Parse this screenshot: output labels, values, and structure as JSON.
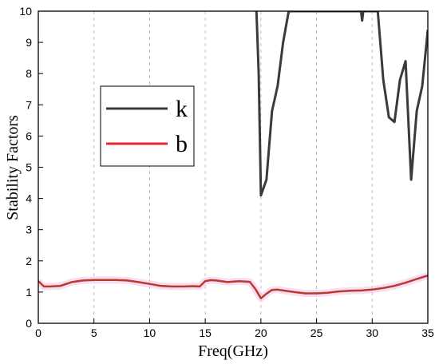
{
  "chart_data": {
    "type": "line",
    "xlabel": "Freq(GHz)",
    "ylabel": "Stability Factors",
    "xlim": [
      0,
      35
    ],
    "ylim": [
      0,
      10
    ],
    "x_ticks": [
      0,
      5,
      10,
      15,
      20,
      25,
      30,
      35
    ],
    "y_ticks": [
      0,
      1,
      2,
      3,
      4,
      5,
      6,
      7,
      8,
      9,
      10
    ],
    "grid": "vertical dashed",
    "legend_position": "left-center",
    "series": [
      {
        "name": "k",
        "color": "#3a3a3a",
        "x": [
          19.6,
          19.8,
          20.0,
          20.5,
          21.0,
          21.5,
          22.0,
          22.5,
          29.0,
          29.1,
          29.2,
          30.5,
          31.0,
          31.5,
          32.0,
          32.5,
          33.0,
          33.5,
          34.0,
          34.5,
          35.0
        ],
        "y": [
          10.0,
          8.0,
          4.1,
          4.6,
          6.8,
          7.6,
          9.0,
          10.0,
          10.0,
          9.7,
          10.0,
          10.0,
          7.8,
          6.6,
          6.45,
          7.8,
          8.4,
          4.6,
          6.8,
          7.6,
          9.4
        ]
      },
      {
        "name": "b",
        "color": "#e6262b",
        "x": [
          0,
          0.5,
          1,
          2,
          3,
          4,
          5,
          6,
          7,
          8,
          9,
          10,
          11,
          12,
          13,
          14,
          14.5,
          15,
          15.5,
          16,
          17,
          18,
          19,
          19.5,
          20,
          20.5,
          21,
          21.5,
          22,
          23,
          24,
          25,
          26,
          27,
          28,
          29,
          30,
          31,
          32,
          33,
          34,
          35
        ],
        "y": [
          1.35,
          1.18,
          1.18,
          1.2,
          1.32,
          1.37,
          1.39,
          1.39,
          1.39,
          1.37,
          1.32,
          1.26,
          1.2,
          1.18,
          1.18,
          1.19,
          1.18,
          1.35,
          1.38,
          1.37,
          1.32,
          1.35,
          1.33,
          1.1,
          0.8,
          0.95,
          1.07,
          1.08,
          1.05,
          1.0,
          0.96,
          0.96,
          0.98,
          1.02,
          1.04,
          1.05,
          1.08,
          1.13,
          1.2,
          1.3,
          1.42,
          1.53
        ]
      }
    ]
  }
}
